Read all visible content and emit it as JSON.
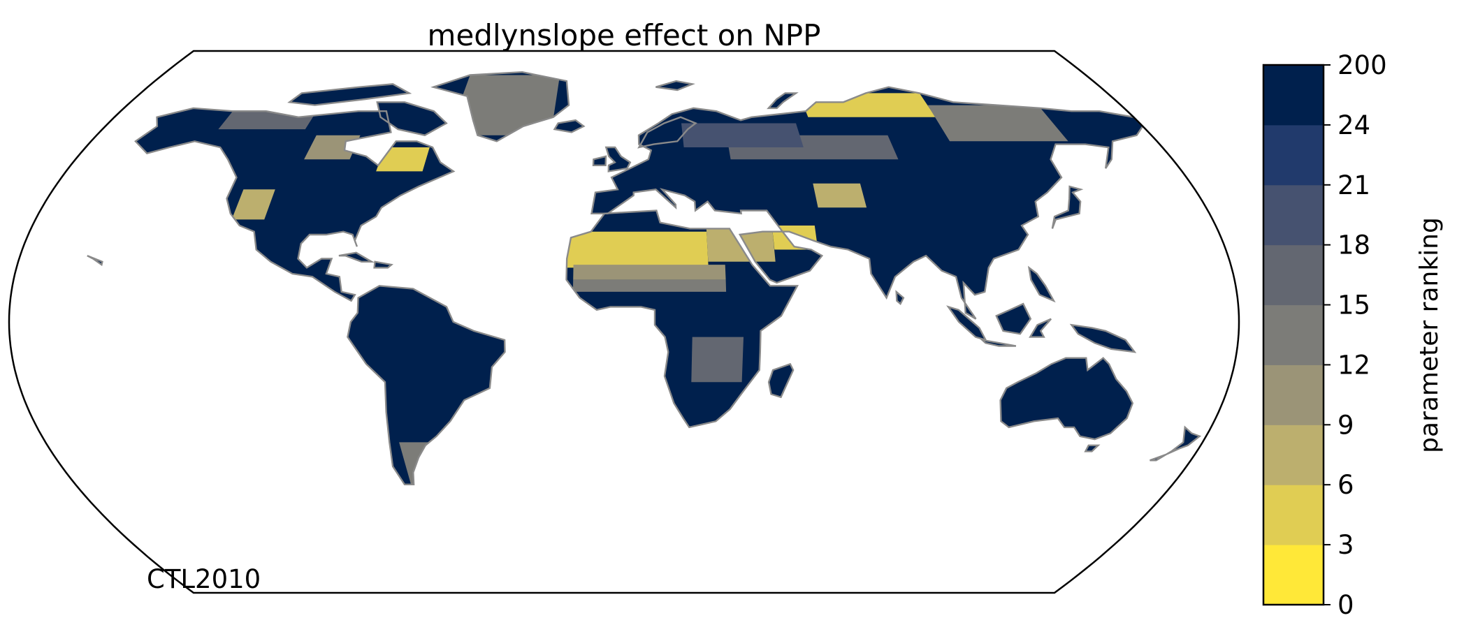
{
  "title": "medlynslope effect on NPP",
  "run_label": "CTL2010",
  "colorbar": {
    "label": "parameter ranking",
    "ticks": [
      "0",
      "3",
      "6",
      "9",
      "12",
      "15",
      "18",
      "21",
      "24",
      "200"
    ],
    "bin_colors": [
      "#ffe838",
      "#e0cd53",
      "#bcaf6e",
      "#9b9477",
      "#7c7c78",
      "#636771",
      "#465270",
      "#213a6c",
      "#00204d"
    ]
  },
  "colors": {
    "land_dominant": "#00204d",
    "coastline": "#8a8a8a",
    "frame": "#000000"
  },
  "chart_data": {
    "type": "heatmap",
    "title": "medlynslope effect on NPP",
    "projection": "robinson",
    "colorbar_label": "parameter ranking",
    "levels": [
      0,
      3,
      6,
      9,
      12,
      15,
      18,
      21,
      24,
      200
    ],
    "annotation": "CTL2010",
    "regions": [
      {
        "lon": [
          -20,
          25
        ],
        "lat": [
          18,
          30
        ],
        "rank": 4
      },
      {
        "lon": [
          -15,
          30
        ],
        "lat": [
          14,
          19
        ],
        "rank": 10
      },
      {
        "lon": [
          25,
          45
        ],
        "lat": [
          20,
          32
        ],
        "rank": 7
      },
      {
        "lon": [
          45,
          58
        ],
        "lat": [
          24,
          32
        ],
        "rank": 4
      },
      {
        "lon": [
          -15,
          30
        ],
        "lat": [
          10,
          14
        ],
        "rank": 13
      },
      {
        "lon": [
          -120,
          -110
        ],
        "lat": [
          34,
          44
        ],
        "rank": 7
      },
      {
        "lon": [
          -80,
          -65
        ],
        "lat": [
          50,
          58
        ],
        "rank": 4
      },
      {
        "lon": [
          -105,
          -90
        ],
        "lat": [
          54,
          62
        ],
        "rank": 11
      },
      {
        "lon": [
          -140,
          -110
        ],
        "lat": [
          64,
          72
        ],
        "rank": 16
      },
      {
        "lon": [
          -60,
          -25
        ],
        "lat": [
          62,
          82
        ],
        "rank": 14
      },
      {
        "lon": [
          35,
          90
        ],
        "lat": [
          54,
          62
        ],
        "rank": 15
      },
      {
        "lon": [
          20,
          60
        ],
        "lat": [
          58,
          66
        ],
        "rank": 20
      },
      {
        "lon": [
          65,
          110
        ],
        "lat": [
          68,
          76
        ],
        "rank": 4
      },
      {
        "lon": [
          110,
          150
        ],
        "lat": [
          60,
          72
        ],
        "rank": 13
      },
      {
        "lon": [
          60,
          75
        ],
        "lat": [
          38,
          46
        ],
        "rank": 8
      },
      {
        "lon": [
          20,
          35
        ],
        "lat": [
          -20,
          -5
        ],
        "rank": 16
      },
      {
        "lon": [
          -70,
          -60
        ],
        "lat": [
          -56,
          -40
        ],
        "rank": 13
      }
    ]
  }
}
